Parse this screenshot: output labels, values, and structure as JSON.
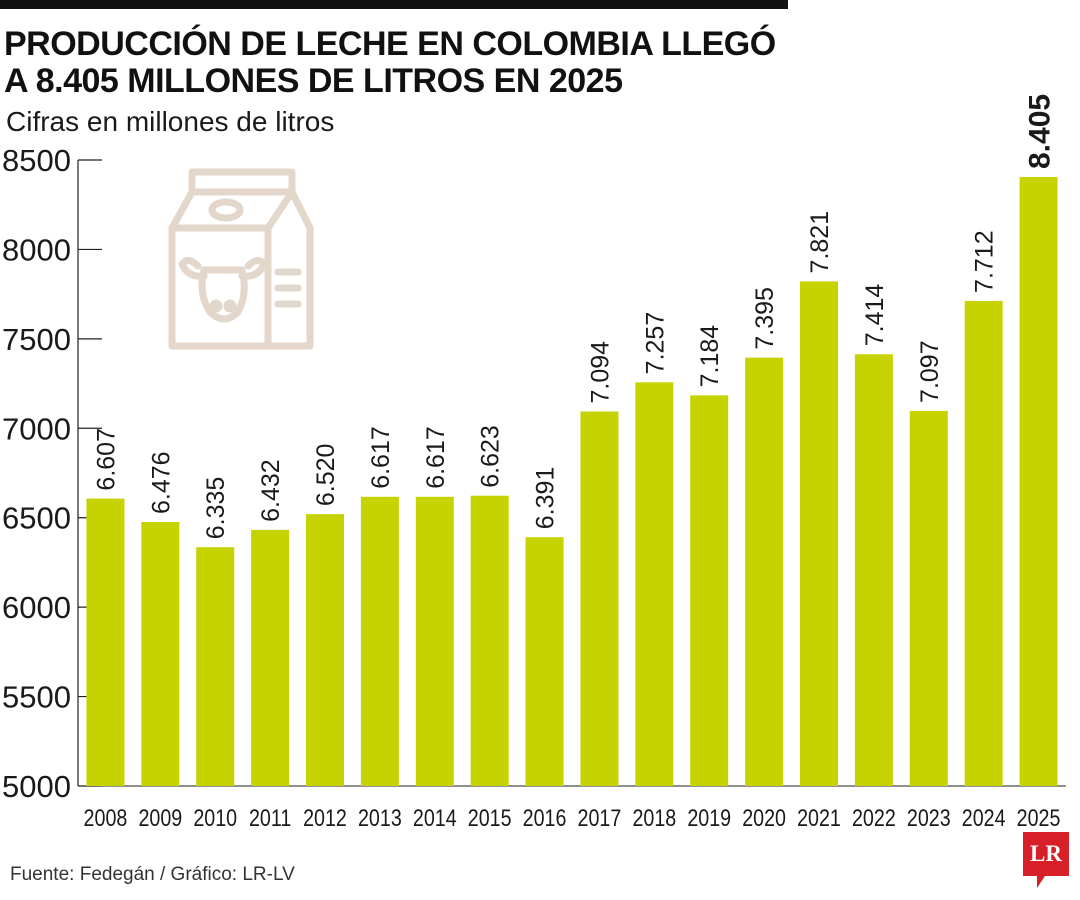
{
  "header": {
    "title_line1": "PRODUCCIÓN DE LECHE EN COLOMBIA LLEGÓ",
    "title_line2": "A 8.405 MILLONES DE LITROS EN 2025",
    "subtitle": "Cifras en millones de litros"
  },
  "footer": {
    "source": "Fuente: Fedegán / Gráfico: LR-LV",
    "logo_text": "LR"
  },
  "icons": {
    "milk_carton": "milk-carton-with-cow-icon",
    "logo": "lr-logo"
  },
  "colors": {
    "bar": "#c6d300",
    "icon": "#e3d6cb",
    "logo": "#d61f26",
    "text": "#1a1a1a"
  },
  "chart_data": {
    "type": "bar",
    "title": "PRODUCCIÓN DE LECHE EN COLOMBIA LLEGÓ A 8.405 MILLONES DE LITROS EN 2025",
    "subtitle": "Cifras en millones de litros",
    "categories": [
      "2008",
      "2009",
      "2010",
      "2011",
      "2012",
      "2013",
      "2014",
      "2015",
      "2016",
      "2017",
      "2018",
      "2019",
      "2020",
      "2021",
      "2022",
      "2023",
      "2024",
      "2025"
    ],
    "values": [
      6607,
      6476,
      6335,
      6432,
      6520,
      6617,
      6617,
      6623,
      6391,
      7094,
      7257,
      7184,
      7395,
      7821,
      7414,
      7097,
      7712,
      8405
    ],
    "value_labels": [
      "6.607",
      "6.476",
      "6.335",
      "6.432",
      "6.520",
      "6.617",
      "6.617",
      "6.623",
      "6.391",
      "7.094",
      "7.257",
      "7.184",
      "7.395",
      "7.821",
      "7.414",
      "7.097",
      "7.712",
      "8.405"
    ],
    "ylim": [
      5000,
      8500
    ],
    "yticks": [
      5000,
      5500,
      6000,
      6500,
      7000,
      7500,
      8000,
      8500
    ],
    "ytick_labels": [
      "5000",
      "5500",
      "6000",
      "6500",
      "7000",
      "7500",
      "8000",
      "8500"
    ],
    "grid": false,
    "legend": "none"
  }
}
